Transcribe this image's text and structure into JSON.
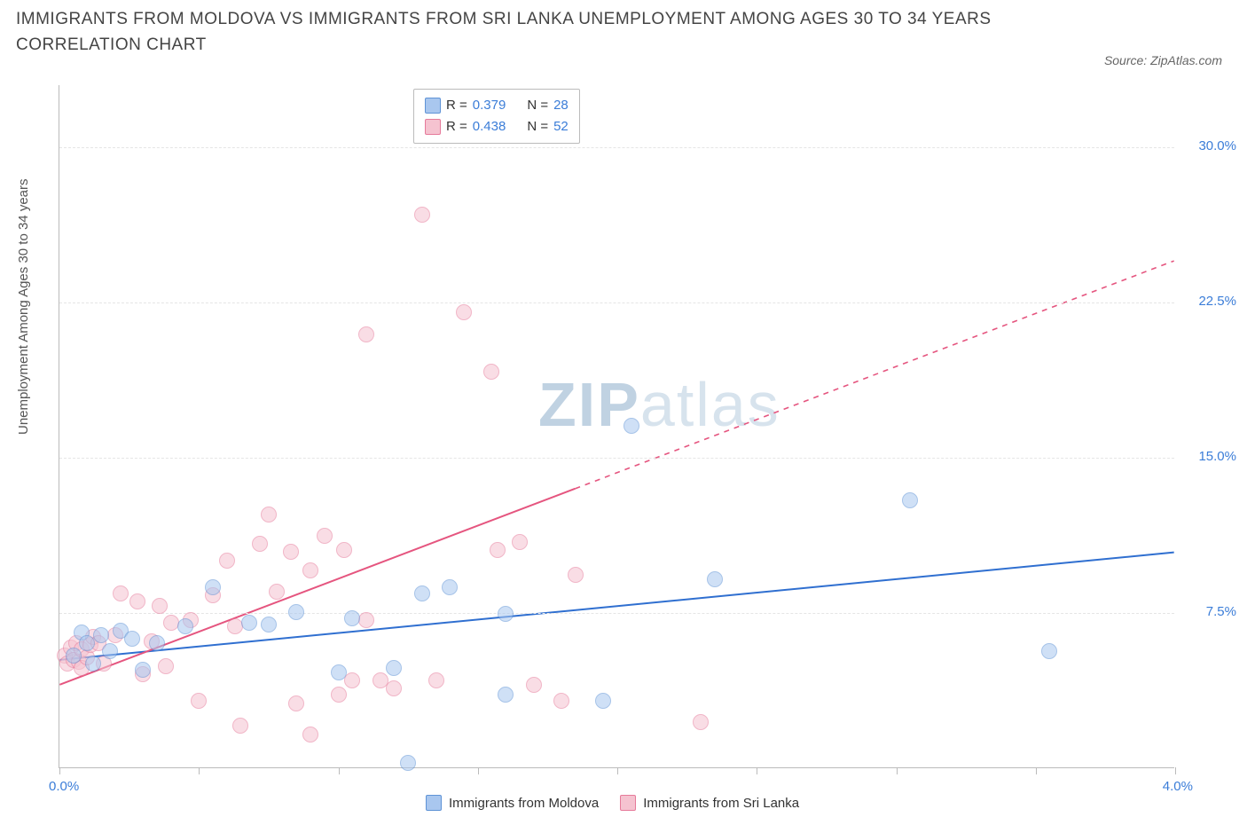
{
  "title": "IMMIGRANTS FROM MOLDOVA VS IMMIGRANTS FROM SRI LANKA UNEMPLOYMENT AMONG AGES 30 TO 34 YEARS CORRELATION CHART",
  "source_label": "Source: ZipAtlas.com",
  "y_axis_label": "Unemployment Among Ages 30 to 34 years",
  "watermark_a": "ZIP",
  "watermark_b": "atlas",
  "chart": {
    "type": "scatter",
    "background_color": "#ffffff",
    "grid_color": "#e5e5e5",
    "axis_color": "#bbbbbb",
    "xlim": [
      0.0,
      4.0
    ],
    "ylim": [
      0.0,
      33.0
    ],
    "x_ticks": [
      0.0,
      0.5,
      1.0,
      1.5,
      2.0,
      2.5,
      3.0,
      3.5,
      4.0
    ],
    "x_tick_labels": {
      "0": "0.0%",
      "4": "4.0%"
    },
    "y_grid": [
      7.5,
      15.0,
      22.5,
      30.0
    ],
    "y_tick_labels": {
      "7.5": "7.5%",
      "15": "15.0%",
      "22.5": "22.5%",
      "30": "30.0%"
    },
    "title_fontsize": 19,
    "label_fontsize": 15,
    "tick_fontsize": 15,
    "tick_color": "#3b7dd8",
    "marker_radius": 9,
    "marker_opacity": 0.55,
    "line_width": 2,
    "series": [
      {
        "name": "Immigrants from Moldova",
        "color_fill": "#a9c7ef",
        "color_stroke": "#5f93d6",
        "line_color": "#2f6fd0",
        "R": 0.379,
        "N": 28,
        "trend": {
          "x1": 0.0,
          "y1": 5.2,
          "x2": 4.0,
          "y2": 10.4,
          "solid_to_x": 4.0
        },
        "points": [
          [
            0.05,
            5.4
          ],
          [
            0.08,
            6.5
          ],
          [
            0.1,
            6.0
          ],
          [
            0.12,
            5.0
          ],
          [
            0.15,
            6.4
          ],
          [
            0.18,
            5.6
          ],
          [
            0.22,
            6.6
          ],
          [
            0.26,
            6.2
          ],
          [
            0.3,
            4.7
          ],
          [
            0.35,
            6.0
          ],
          [
            0.45,
            6.8
          ],
          [
            0.55,
            8.7
          ],
          [
            0.68,
            7.0
          ],
          [
            0.75,
            6.9
          ],
          [
            0.85,
            7.5
          ],
          [
            1.0,
            4.6
          ],
          [
            1.05,
            7.2
          ],
          [
            1.2,
            4.8
          ],
          [
            1.25,
            0.2
          ],
          [
            1.3,
            8.4
          ],
          [
            1.4,
            8.7
          ],
          [
            1.6,
            7.4
          ],
          [
            1.6,
            3.5
          ],
          [
            1.95,
            3.2
          ],
          [
            2.05,
            16.5
          ],
          [
            2.35,
            9.1
          ],
          [
            3.05,
            12.9
          ],
          [
            3.55,
            5.6
          ]
        ]
      },
      {
        "name": "Immigrants from Sri Lanka",
        "color_fill": "#f5c3d0",
        "color_stroke": "#e67a9a",
        "line_color": "#e5557f",
        "R": 0.438,
        "N": 52,
        "trend": {
          "x1": 0.0,
          "y1": 4.0,
          "x2": 4.0,
          "y2": 24.5,
          "solid_to_x": 1.85
        },
        "points": [
          [
            0.02,
            5.4
          ],
          [
            0.03,
            5.0
          ],
          [
            0.04,
            5.8
          ],
          [
            0.05,
            5.2
          ],
          [
            0.06,
            6.0
          ],
          [
            0.07,
            5.1
          ],
          [
            0.08,
            4.8
          ],
          [
            0.08,
            5.7
          ],
          [
            0.1,
            5.3
          ],
          [
            0.11,
            5.9
          ],
          [
            0.12,
            6.3
          ],
          [
            0.14,
            6.0
          ],
          [
            0.16,
            5.0
          ],
          [
            0.2,
            6.4
          ],
          [
            0.22,
            8.4
          ],
          [
            0.28,
            8.0
          ],
          [
            0.3,
            4.5
          ],
          [
            0.33,
            6.1
          ],
          [
            0.36,
            7.8
          ],
          [
            0.38,
            4.9
          ],
          [
            0.4,
            7.0
          ],
          [
            0.47,
            7.1
          ],
          [
            0.5,
            3.2
          ],
          [
            0.55,
            8.3
          ],
          [
            0.6,
            10.0
          ],
          [
            0.63,
            6.8
          ],
          [
            0.65,
            2.0
          ],
          [
            0.72,
            10.8
          ],
          [
            0.75,
            12.2
          ],
          [
            0.78,
            8.5
          ],
          [
            0.83,
            10.4
          ],
          [
            0.85,
            3.1
          ],
          [
            0.9,
            9.5
          ],
          [
            0.9,
            1.6
          ],
          [
            0.95,
            11.2
          ],
          [
            1.0,
            3.5
          ],
          [
            1.02,
            10.5
          ],
          [
            1.05,
            4.2
          ],
          [
            1.1,
            7.1
          ],
          [
            1.1,
            20.9
          ],
          [
            1.15,
            4.2
          ],
          [
            1.2,
            3.8
          ],
          [
            1.3,
            26.7
          ],
          [
            1.35,
            4.2
          ],
          [
            1.45,
            22.0
          ],
          [
            1.55,
            19.1
          ],
          [
            1.57,
            10.5
          ],
          [
            1.65,
            10.9
          ],
          [
            1.7,
            4.0
          ],
          [
            1.8,
            3.2
          ],
          [
            1.85,
            9.3
          ],
          [
            2.3,
            2.2
          ]
        ]
      }
    ]
  },
  "legend_top": {
    "rows": [
      {
        "swatch_fill": "#a9c7ef",
        "swatch_stroke": "#5f93d6",
        "r_label": "R =",
        "r_value": "0.379",
        "n_label": "N =",
        "n_value": "28"
      },
      {
        "swatch_fill": "#f5c3d0",
        "swatch_stroke": "#e67a9a",
        "r_label": "R =",
        "r_value": "0.438",
        "n_label": "N =",
        "n_value": "52"
      }
    ]
  },
  "legend_bottom": {
    "items": [
      {
        "swatch_fill": "#a9c7ef",
        "swatch_stroke": "#5f93d6",
        "label": "Immigrants from Moldova"
      },
      {
        "swatch_fill": "#f5c3d0",
        "swatch_stroke": "#e67a9a",
        "label": "Immigrants from Sri Lanka"
      }
    ]
  }
}
